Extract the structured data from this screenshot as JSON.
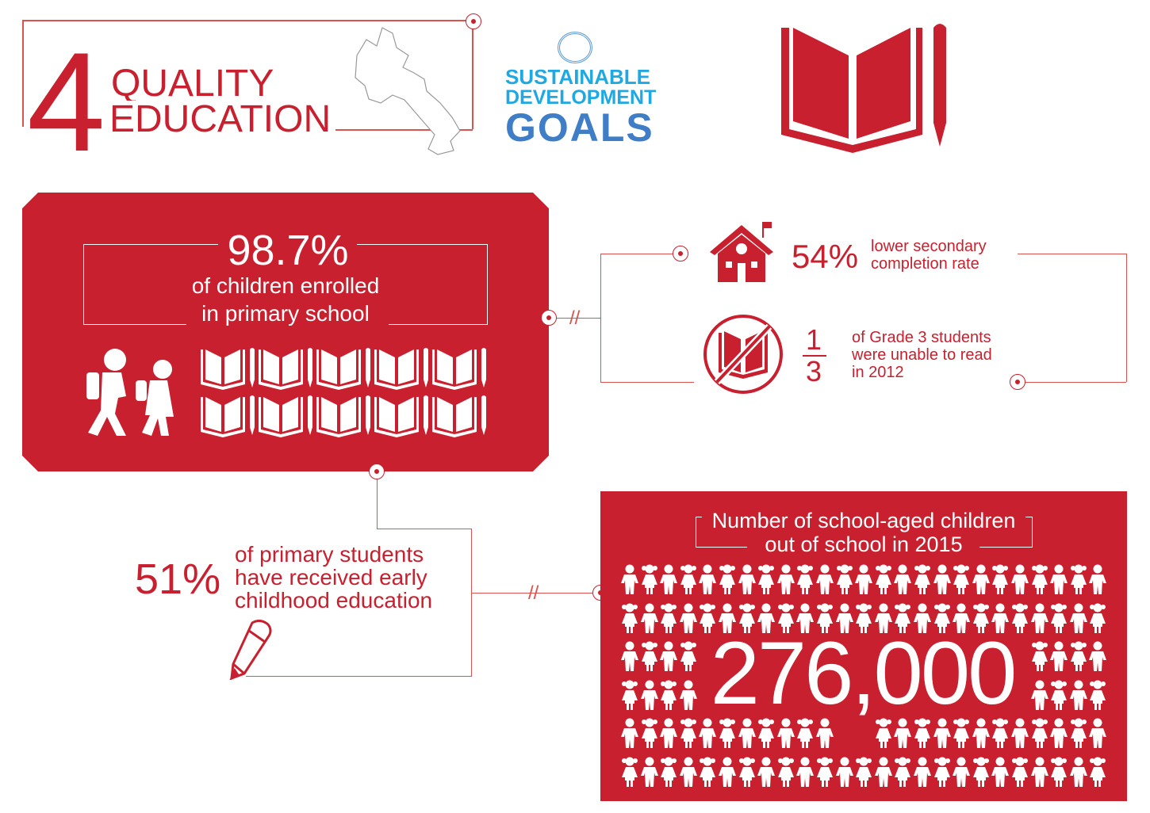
{
  "header": {
    "goal_number": "4",
    "title_line1": "QUALITY",
    "title_line2": "EDUCATION"
  },
  "sdg_logo": {
    "line1": "SUSTAINABLE",
    "line2": "DEVELOPMENT",
    "line3": "GOALS"
  },
  "colors": {
    "primary_red": "#c8202f",
    "sdg_blue": "#1fa8e1",
    "goals_blue": "#3f7ec6"
  },
  "enrollment": {
    "value": "98.7%",
    "line1": "of children enrolled",
    "line2": "in primary school"
  },
  "secondary": {
    "value": "54%",
    "line1": "lower secondary",
    "line2": "completion rate"
  },
  "reading": {
    "numerator": "1",
    "denominator": "3",
    "line1": "of Grade 3 students",
    "line2": "were unable to read",
    "line3": "in 2012"
  },
  "early_childhood": {
    "value": "51%",
    "line1": "of primary students",
    "line2": "have received early",
    "line3": "childhood education"
  },
  "out_of_school": {
    "title_line1": "Number of school-aged children",
    "title_line2": "out of school in 2015",
    "value": "276,000"
  }
}
